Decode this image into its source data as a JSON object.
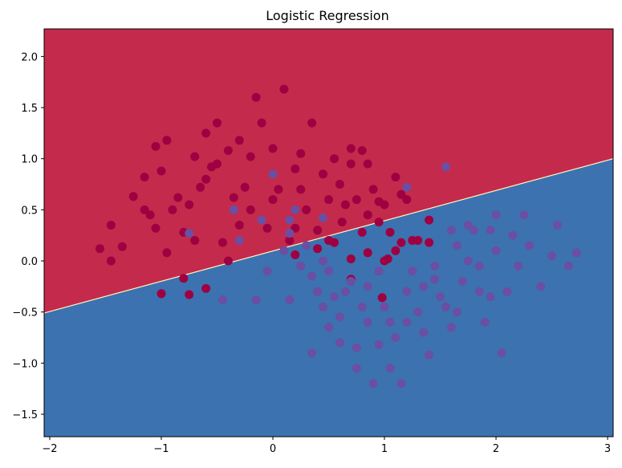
{
  "chart_data": {
    "type": "scatter",
    "title": "Logistic Regression",
    "xlabel": "",
    "ylabel": "",
    "xlim": [
      -2.05,
      3.05
    ],
    "ylim": [
      -1.72,
      2.27
    ],
    "xticks": [
      -2,
      -1,
      0,
      1,
      2,
      3
    ],
    "yticks": [
      -1.5,
      -1.0,
      -0.5,
      0.0,
      0.5,
      1.0,
      1.5,
      2.0
    ],
    "xtick_labels": [
      "−2",
      "−1",
      "0",
      "1",
      "2",
      "3"
    ],
    "ytick_labels": [
      "−1.5",
      "−1.0",
      "−0.5",
      "0.0",
      "0.5",
      "1.0",
      "1.5",
      "2.0"
    ],
    "grid": false,
    "decision_boundary": {
      "x": [
        -2.05,
        3.05
      ],
      "y": [
        -0.51,
        1.0
      ],
      "upper_region_color": "#c42a4c",
      "lower_region_color": "#3c72b0"
    },
    "series": [
      {
        "color": "#9e0142",
        "points": [
          [
            -1.55,
            0.12
          ],
          [
            -1.45,
            0.0
          ],
          [
            -1.45,
            0.35
          ],
          [
            -1.35,
            0.14
          ],
          [
            -1.25,
            0.63
          ],
          [
            -1.15,
            0.5
          ],
          [
            -1.1,
            0.45
          ],
          [
            -1.05,
            1.12
          ],
          [
            -1.0,
            0.88
          ],
          [
            -0.95,
            1.18
          ],
          [
            -0.9,
            0.5
          ],
          [
            -0.85,
            0.62
          ],
          [
            -0.8,
            0.28
          ],
          [
            -0.75,
            0.55
          ],
          [
            -0.7,
            1.02
          ],
          [
            -0.65,
            0.72
          ],
          [
            -0.6,
            1.25
          ],
          [
            -0.55,
            0.92
          ],
          [
            -0.5,
            1.35
          ],
          [
            -0.45,
            0.18
          ],
          [
            -0.4,
            1.08
          ],
          [
            -0.35,
            0.62
          ],
          [
            -0.3,
            1.18
          ],
          [
            -0.25,
            0.72
          ],
          [
            -0.2,
            0.5
          ],
          [
            -0.15,
            1.6
          ],
          [
            -0.1,
            1.35
          ],
          [
            -0.05,
            0.32
          ],
          [
            0.0,
            1.1
          ],
          [
            0.05,
            0.7
          ],
          [
            0.1,
            1.68
          ],
          [
            0.15,
            0.2
          ],
          [
            0.2,
            0.9
          ],
          [
            0.25,
            1.05
          ],
          [
            0.3,
            0.5
          ],
          [
            0.35,
            1.35
          ],
          [
            0.4,
            0.12
          ],
          [
            0.45,
            0.85
          ],
          [
            0.5,
            0.6
          ],
          [
            0.55,
            1.0
          ],
          [
            0.6,
            0.75
          ],
          [
            0.65,
            0.55
          ],
          [
            0.7,
            0.95
          ],
          [
            0.75,
            0.6
          ],
          [
            0.8,
            1.08
          ],
          [
            0.85,
            0.45
          ],
          [
            0.9,
            0.7
          ],
          [
            0.95,
            0.38
          ],
          [
            1.0,
            0.55
          ],
          [
            1.05,
            0.28
          ],
          [
            1.1,
            0.82
          ],
          [
            1.15,
            0.18
          ],
          [
            1.2,
            0.6
          ],
          [
            1.3,
            0.2
          ],
          [
            -1.0,
            -0.32
          ],
          [
            -0.75,
            -0.33
          ],
          [
            -0.8,
            -0.17
          ],
          [
            -0.6,
            -0.27
          ],
          [
            -0.4,
            0.0
          ],
          [
            0.2,
            0.06
          ],
          [
            0.55,
            0.18
          ],
          [
            0.7,
            0.02
          ],
          [
            0.7,
            -0.18
          ],
          [
            0.98,
            -0.36
          ],
          [
            1.03,
            0.02
          ],
          [
            1.1,
            0.1
          ],
          [
            1.25,
            0.2
          ],
          [
            1.4,
            0.18
          ],
          [
            1.4,
            0.4
          ],
          [
            -0.7,
            0.2
          ],
          [
            -0.95,
            0.08
          ],
          [
            -0.3,
            0.35
          ],
          [
            0.62,
            0.38
          ],
          [
            0.85,
            0.08
          ],
          [
            0.2,
            0.32
          ],
          [
            0.5,
            0.2
          ],
          [
            0.95,
            0.58
          ],
          [
            -1.15,
            0.82
          ],
          [
            -1.05,
            0.32
          ],
          [
            -0.5,
            0.95
          ],
          [
            0.25,
            0.7
          ],
          [
            0.0,
            0.6
          ],
          [
            0.7,
            1.1
          ],
          [
            0.85,
            0.95
          ],
          [
            -0.2,
            1.02
          ],
          [
            1.15,
            0.65
          ],
          [
            0.8,
            0.28
          ],
          [
            1.0,
            0.0
          ],
          [
            0.4,
            0.3
          ],
          [
            -0.6,
            0.8
          ]
        ]
      },
      {
        "color": "#6a4fa3",
        "points": [
          [
            0.15,
            0.4
          ],
          [
            0.25,
            -0.05
          ],
          [
            0.35,
            -0.15
          ],
          [
            0.4,
            -0.3
          ],
          [
            0.45,
            -0.45
          ],
          [
            0.5,
            -0.1
          ],
          [
            0.55,
            -0.35
          ],
          [
            0.6,
            -0.55
          ],
          [
            0.65,
            -0.3
          ],
          [
            0.7,
            -0.2
          ],
          [
            0.75,
            -0.85
          ],
          [
            0.8,
            -0.45
          ],
          [
            0.85,
            -0.6
          ],
          [
            0.9,
            -1.2
          ],
          [
            0.95,
            -0.1
          ],
          [
            1.0,
            -0.45
          ],
          [
            1.05,
            -0.6
          ],
          [
            1.1,
            -0.75
          ],
          [
            1.15,
            -1.2
          ],
          [
            1.2,
            -0.3
          ],
          [
            1.25,
            -0.1
          ],
          [
            1.3,
            -0.5
          ],
          [
            1.35,
            -0.25
          ],
          [
            1.4,
            -0.92
          ],
          [
            1.45,
            -0.05
          ],
          [
            1.5,
            -0.35
          ],
          [
            1.55,
            -0.45
          ],
          [
            1.6,
            -0.65
          ],
          [
            1.65,
            0.15
          ],
          [
            1.7,
            -0.2
          ],
          [
            1.75,
            0.0
          ],
          [
            1.8,
            0.3
          ],
          [
            1.85,
            -0.05
          ],
          [
            1.9,
            -0.6
          ],
          [
            1.95,
            -0.35
          ],
          [
            2.0,
            0.1
          ],
          [
            2.05,
            -0.9
          ],
          [
            2.1,
            -0.3
          ],
          [
            2.15,
            0.25
          ],
          [
            2.2,
            -0.05
          ],
          [
            2.3,
            0.15
          ],
          [
            2.4,
            -0.25
          ],
          [
            2.5,
            0.05
          ],
          [
            2.55,
            0.35
          ],
          [
            2.65,
            -0.05
          ],
          [
            2.72,
            0.08
          ],
          [
            0.0,
            0.85
          ],
          [
            0.2,
            0.5
          ],
          [
            0.45,
            0.42
          ],
          [
            1.55,
            0.92
          ],
          [
            1.2,
            0.72
          ],
          [
            0.75,
            -1.05
          ],
          [
            0.6,
            -0.8
          ],
          [
            0.95,
            -0.82
          ],
          [
            1.35,
            -0.7
          ],
          [
            1.05,
            -1.05
          ],
          [
            1.2,
            -0.6
          ],
          [
            0.35,
            -0.9
          ],
          [
            0.5,
            -0.65
          ],
          [
            0.85,
            -0.25
          ],
          [
            1.6,
            0.3
          ],
          [
            1.75,
            0.35
          ],
          [
            2.0,
            0.45
          ],
          [
            1.95,
            0.3
          ],
          [
            -0.1,
            0.4
          ],
          [
            -0.3,
            0.2
          ],
          [
            0.3,
            0.15
          ],
          [
            0.45,
            0.0
          ],
          [
            0.1,
            0.1
          ],
          [
            -0.05,
            -0.1
          ],
          [
            -0.45,
            -0.38
          ],
          [
            -0.15,
            -0.38
          ],
          [
            0.15,
            -0.38
          ],
          [
            -0.75,
            0.27
          ],
          [
            -0.35,
            0.5
          ],
          [
            0.15,
            0.27
          ],
          [
            1.85,
            -0.3
          ],
          [
            1.65,
            -0.5
          ],
          [
            2.25,
            0.45
          ],
          [
            1.45,
            -0.18
          ]
        ]
      }
    ]
  }
}
